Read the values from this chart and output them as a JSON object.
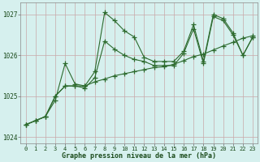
{
  "xlabel": "Graphe pression niveau de la mer (hPa)",
  "bg_color": "#d6f0ee",
  "grid_color": "#c9a8a8",
  "line_color": "#2d6a2d",
  "x": [
    0,
    1,
    2,
    3,
    4,
    5,
    6,
    7,
    8,
    9,
    10,
    11,
    12,
    13,
    14,
    15,
    16,
    17,
    18,
    19,
    20,
    21,
    22,
    23
  ],
  "line1": [
    1024.3,
    1024.4,
    1024.5,
    1024.9,
    1025.8,
    1025.3,
    1025.25,
    1025.6,
    1027.05,
    1026.85,
    1026.6,
    1026.45,
    1025.95,
    1025.85,
    1025.85,
    1025.85,
    1026.1,
    1026.75,
    1025.85,
    1027.0,
    1026.9,
    1026.55,
    1026.0,
    1026.45
  ],
  "line2": [
    1024.3,
    1024.4,
    1024.5,
    1025.0,
    1025.25,
    1025.25,
    1025.2,
    1025.45,
    1026.35,
    1026.15,
    1026.0,
    1025.9,
    1025.85,
    1025.75,
    1025.75,
    1025.75,
    1026.05,
    1026.65,
    1025.8,
    1026.95,
    1026.85,
    1026.5,
    1026.0,
    1026.45
  ],
  "line3": [
    1024.3,
    1024.4,
    1024.5,
    1025.0,
    1025.25,
    1025.25,
    1025.25,
    1025.35,
    1025.42,
    1025.5,
    1025.55,
    1025.6,
    1025.65,
    1025.7,
    1025.72,
    1025.78,
    1025.87,
    1025.97,
    1026.03,
    1026.13,
    1026.23,
    1026.32,
    1026.42,
    1026.48
  ],
  "ylim": [
    1023.85,
    1027.3
  ],
  "yticks": [
    1024,
    1025,
    1026,
    1027
  ],
  "xticks": [
    0,
    1,
    2,
    3,
    4,
    5,
    6,
    7,
    8,
    9,
    10,
    11,
    12,
    13,
    14,
    15,
    16,
    17,
    18,
    19,
    20,
    21,
    22,
    23
  ],
  "marker": "+",
  "markersize": 4,
  "linewidth": 0.8
}
